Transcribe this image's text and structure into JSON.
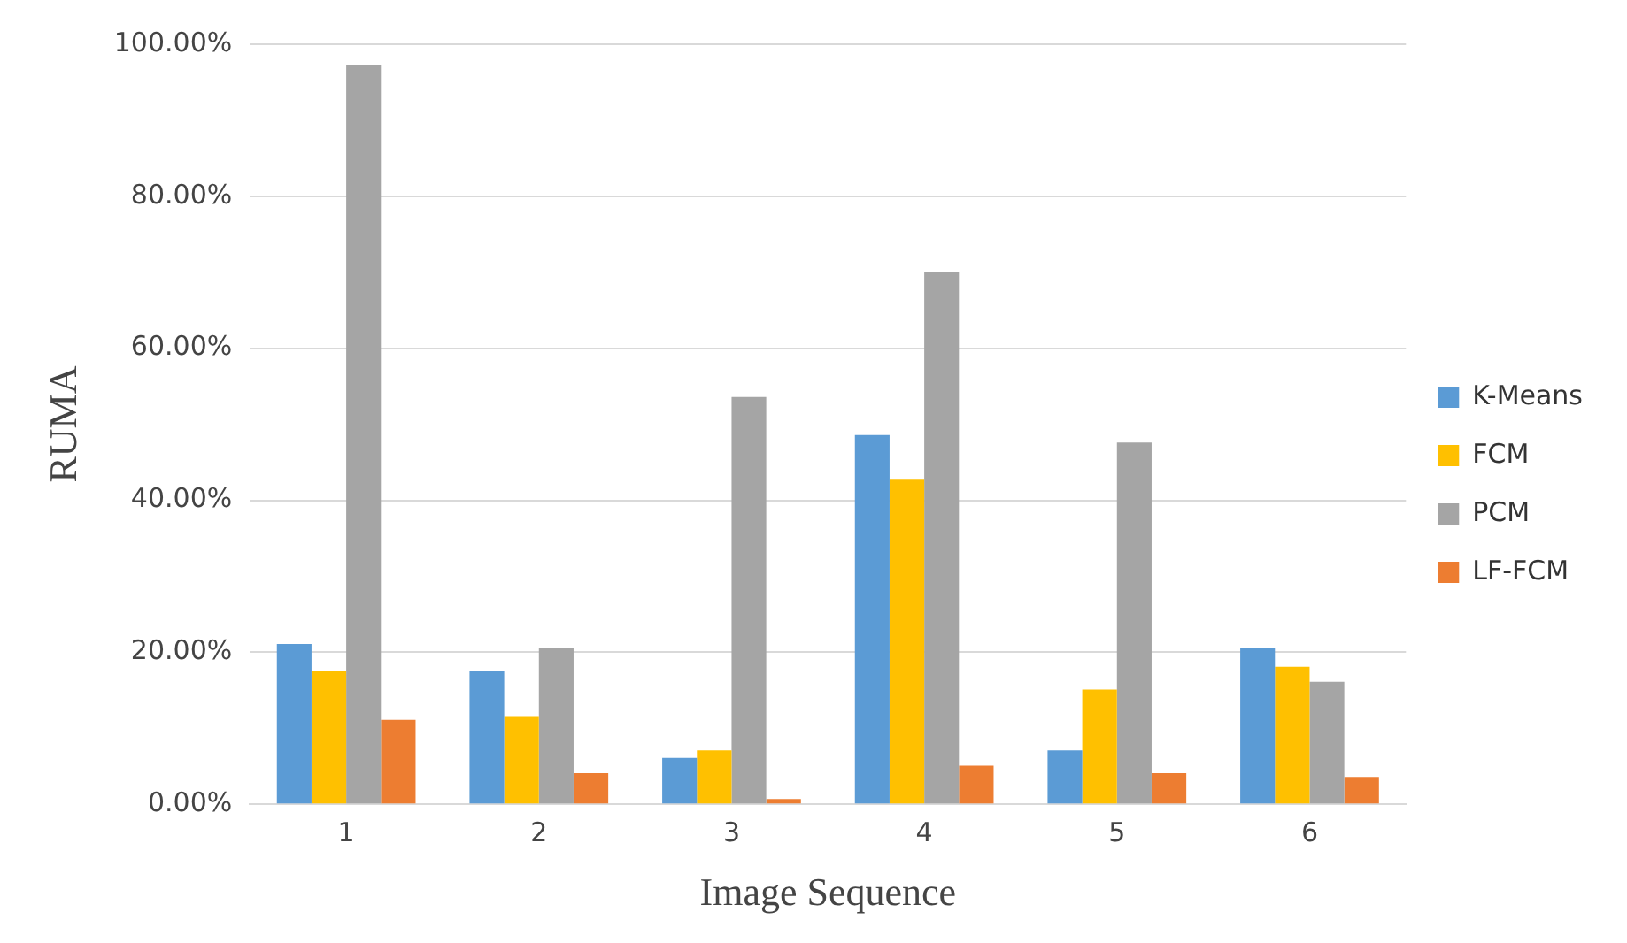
{
  "chart_data": {
    "type": "bar",
    "xlabel": "Image Sequence",
    "ylabel": "RUMA",
    "categories": [
      "1",
      "2",
      "3",
      "4",
      "5",
      "6"
    ],
    "series": [
      {
        "name": "K-Means",
        "color": "#5b9bd5",
        "values": [
          21.1,
          17.6,
          6.1,
          48.6,
          7.1,
          20.6
        ]
      },
      {
        "name": "FCM",
        "color": "#ffc000",
        "values": [
          17.6,
          11.6,
          7.1,
          42.7,
          15.1,
          18.1
        ]
      },
      {
        "name": "PCM",
        "color": "#a5a5a5",
        "values": [
          97.2,
          20.6,
          53.6,
          70.1,
          47.6,
          16.1
        ]
      },
      {
        "name": "LF-FCM",
        "color": "#ed7d31",
        "values": [
          11.1,
          4.1,
          0.7,
          5.1,
          4.1,
          3.6
        ]
      }
    ],
    "ylim": [
      0,
      100
    ],
    "yticks": [
      {
        "value": 0,
        "label": "0.00%"
      },
      {
        "value": 20,
        "label": "20.00%"
      },
      {
        "value": 40,
        "label": "40.00%"
      },
      {
        "value": 60,
        "label": "60.00%"
      },
      {
        "value": 80,
        "label": "80.00%"
      },
      {
        "value": 100,
        "label": "100.00%"
      }
    ],
    "grid": "y",
    "legend": "right"
  }
}
